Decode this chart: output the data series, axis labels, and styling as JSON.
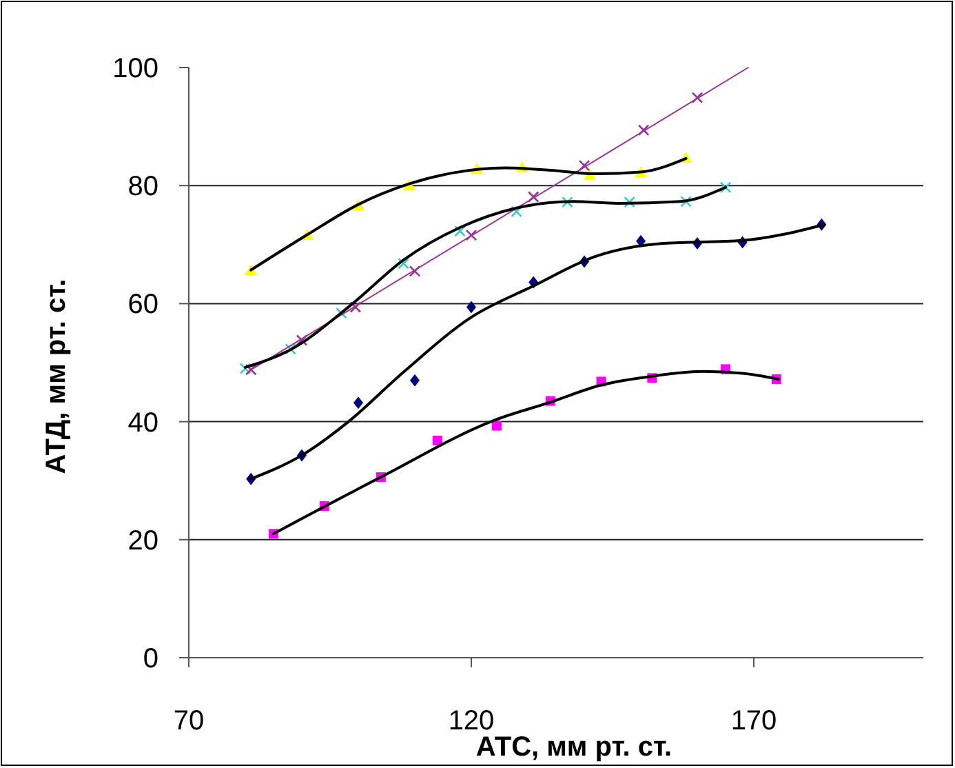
{
  "chart_data": {
    "type": "scatter",
    "xlabel": "АТС, мм рт. ст.",
    "ylabel": "АТД, мм рт. ст.",
    "xlim": [
      70,
      200
    ],
    "xticks": [
      70,
      120,
      170
    ],
    "ylim": [
      0,
      100
    ],
    "yticks": [
      0,
      20,
      40,
      60,
      80,
      100
    ],
    "grid": "y",
    "series": [
      {
        "marker": "triangle",
        "color": "#ffff00",
        "x": [
          81,
          91,
          100,
          109,
          121,
          129,
          141,
          150,
          158
        ],
        "values": [
          65.6,
          71.6,
          76.6,
          80,
          82.8,
          83.1,
          81.8,
          82.2,
          84.7
        ]
      },
      {
        "marker": "cross",
        "color": "#33cccc",
        "x": [
          80,
          88,
          97,
          108,
          118,
          128,
          137,
          148,
          158,
          165
        ],
        "values": [
          49,
          52.3,
          58.4,
          66.8,
          72.3,
          75.6,
          77.2,
          77.2,
          77.3,
          79.7
        ]
      },
      {
        "marker": "diamond",
        "color": "#000080",
        "x": [
          81,
          90,
          100,
          110,
          120,
          131,
          140,
          150,
          160,
          168,
          182
        ],
        "values": [
          30.3,
          34.3,
          43.2,
          47,
          59.4,
          63.6,
          67.1,
          70.6,
          70.2,
          70.4,
          73.4
        ]
      },
      {
        "marker": "square",
        "color": "#ff00ff",
        "x": [
          85,
          94,
          104,
          114,
          124.5,
          134,
          143,
          152,
          165,
          174
        ],
        "values": [
          21,
          25.7,
          30.6,
          36.8,
          39.3,
          43.5,
          46.8,
          47.4,
          48.9,
          47.2
        ]
      },
      {
        "marker": "cross",
        "color": "#993399",
        "x": [
          81,
          90,
          99.5,
          110,
          120,
          131,
          140,
          150.5,
          160
        ],
        "values": [
          48.8,
          53.8,
          59.4,
          65.5,
          71.6,
          78.1,
          83.4,
          89.4,
          94.9
        ]
      },
      {
        "type": "line",
        "marker": "none",
        "color": "#993399",
        "x": [
          81,
          169
        ],
        "values": [
          48.8,
          100
        ]
      },
      {
        "type": "line",
        "marker": "none",
        "color": "#000000",
        "x": [
          81,
          91,
          100,
          109,
          117,
          126,
          134,
          142,
          150,
          158
        ],
        "values": [
          65.7,
          71.7,
          76.8,
          80.3,
          82.2,
          83,
          82.6,
          82,
          82.3,
          84.6
        ]
      },
      {
        "type": "line",
        "marker": "none",
        "color": "#000000",
        "x": [
          80,
          88,
          99,
          108,
          118,
          128,
          138,
          146,
          157,
          165
        ],
        "values": [
          49.2,
          52.2,
          60,
          67.4,
          72.9,
          76.2,
          77.3,
          77,
          77.3,
          79.7
        ]
      },
      {
        "type": "line",
        "marker": "none",
        "color": "#000000",
        "x": [
          81,
          90,
          98,
          108,
          120,
          131,
          142,
          154,
          168,
          175,
          182.5
        ],
        "values": [
          30.3,
          34.3,
          39.8,
          48.4,
          57.7,
          63,
          68,
          70.2,
          70.7,
          71.7,
          73.4
        ]
      },
      {
        "type": "line",
        "marker": "none",
        "color": "#000000",
        "x": [
          85,
          104,
          124,
          134,
          143,
          152,
          161,
          168,
          174.4
        ],
        "values": [
          21,
          30.6,
          40.2,
          43.3,
          46.2,
          47.7,
          48.5,
          48.2,
          47.2
        ]
      }
    ]
  }
}
